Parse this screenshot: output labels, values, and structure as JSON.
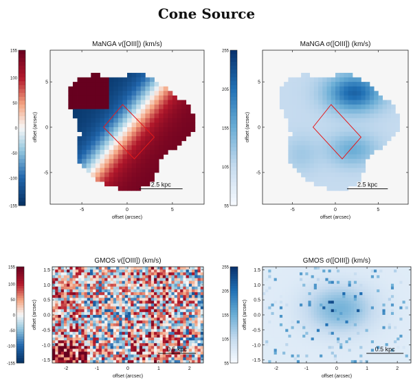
{
  "figure_title": "Cone Source",
  "chart_data": [
    {
      "type": "heatmap",
      "id": "manga-velocity",
      "title": "MaNGA v([OIII]) (km/s)",
      "xlabel": "offset (arcsec)",
      "ylabel": "offset (arcsec)",
      "xlim": [
        -8.5,
        8.5
      ],
      "ylim": [
        -8.5,
        8.5
      ],
      "xticks": [
        -5,
        0,
        5
      ],
      "yticks": [
        -5,
        0,
        5
      ],
      "colormap": "RdBu_r",
      "colorbar": {
        "min": -155,
        "max": 155,
        "ticks": [
          155,
          100,
          50,
          0,
          -50,
          -100,
          -155
        ]
      },
      "scalebar": "2.5 kpc",
      "aperture": [
        [
          -0.5,
          2.5
        ],
        [
          3,
          -1.1
        ],
        [
          0.8,
          -3.5
        ],
        [
          -2.6,
          0
        ]
      ]
    },
    {
      "type": "heatmap",
      "id": "manga-dispersion",
      "title": "MaNGA σ([OIII]) (km/s)",
      "xlabel": "offset (arcsec)",
      "ylabel": "offset (arcsec)",
      "xlim": [
        -8.5,
        8.5
      ],
      "ylim": [
        -8.5,
        8.5
      ],
      "xticks": [
        -5,
        0,
        5
      ],
      "yticks": [
        -5,
        0,
        5
      ],
      "colormap": "Blues",
      "colorbar": {
        "min": 55,
        "max": 255,
        "ticks": [
          255,
          205,
          155,
          105,
          55
        ]
      },
      "scalebar": "2.5 kpc",
      "aperture": [
        [
          -0.5,
          2.5
        ],
        [
          3,
          -1.1
        ],
        [
          0.8,
          -3.5
        ],
        [
          -2.6,
          0
        ]
      ]
    },
    {
      "type": "heatmap",
      "id": "gmos-velocity",
      "title": "GMOS v([OIII]) (km/s)",
      "xlabel": "offset (arcsec)",
      "ylabel": "offset (arcsec)",
      "xlim": [
        -2.45,
        2.45
      ],
      "ylim": [
        -1.6,
        1.6
      ],
      "xticks": [
        -2,
        -1,
        0,
        1,
        2
      ],
      "yticks": [
        1.5,
        1.0,
        0.5,
        0.0,
        -0.5,
        -1.0,
        -1.5
      ],
      "colormap": "RdBu_r",
      "colorbar": {
        "min": -155,
        "max": 155,
        "ticks": [
          155,
          100,
          50,
          0,
          -50,
          -100,
          -155
        ]
      },
      "scalebar": "0.5 kpc"
    },
    {
      "type": "heatmap",
      "id": "gmos-dispersion",
      "title": "GMOS σ([OIII]) (km/s)",
      "xlabel": "offset (arcsec)",
      "ylabel": "offset (arcsec)",
      "xlim": [
        -2.45,
        2.45
      ],
      "ylim": [
        -1.6,
        1.6
      ],
      "xticks": [
        -2,
        -1,
        0,
        1,
        2
      ],
      "yticks": [
        1.5,
        1.0,
        0.5,
        0.0,
        -0.5,
        -1.0,
        -1.5
      ],
      "colormap": "Blues",
      "colorbar": {
        "min": 55,
        "max": 255,
        "ticks": [
          255,
          205,
          155,
          105,
          55
        ]
      },
      "scalebar": "0.5 kpc"
    }
  ]
}
